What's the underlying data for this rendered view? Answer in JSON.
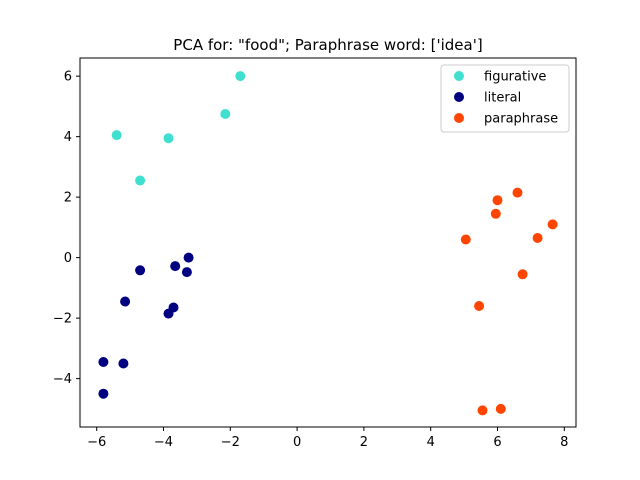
{
  "chart_data": {
    "type": "scatter",
    "title": "PCA for: \"food\"; Paraphrase word: ['idea']",
    "xlabel": "",
    "ylabel": "",
    "xlim": [
      -6.5,
      8.35
    ],
    "ylim": [
      -5.6,
      6.6
    ],
    "xticks": [
      -6,
      -4,
      -2,
      0,
      2,
      4,
      6,
      8
    ],
    "xtick_labels": [
      "−6",
      "−4",
      "−2",
      "0",
      "2",
      "4",
      "6",
      "8"
    ],
    "yticks": [
      -4,
      -2,
      0,
      2,
      4,
      6
    ],
    "ytick_labels": [
      "−4",
      "−2",
      "0",
      "2",
      "4",
      "6"
    ],
    "grid": false,
    "legend_position": "top-right",
    "series": [
      {
        "name": "figurative",
        "color": "#40e0d0",
        "points": [
          {
            "x": -5.4,
            "y": 4.05
          },
          {
            "x": -3.85,
            "y": 3.95
          },
          {
            "x": -4.7,
            "y": 2.55
          },
          {
            "x": -2.15,
            "y": 4.75
          },
          {
            "x": -1.7,
            "y": 6.0
          }
        ]
      },
      {
        "name": "literal",
        "color": "#000080",
        "points": [
          {
            "x": -3.25,
            "y": 0.0
          },
          {
            "x": -3.65,
            "y": -0.28
          },
          {
            "x": -3.3,
            "y": -0.48
          },
          {
            "x": -4.7,
            "y": -0.42
          },
          {
            "x": -5.15,
            "y": -1.45
          },
          {
            "x": -3.7,
            "y": -1.65
          },
          {
            "x": -3.85,
            "y": -1.85
          },
          {
            "x": -5.8,
            "y": -3.45
          },
          {
            "x": -5.2,
            "y": -3.5
          },
          {
            "x": -5.8,
            "y": -4.5
          }
        ]
      },
      {
        "name": "paraphrase",
        "color": "#ff4500",
        "points": [
          {
            "x": 6.6,
            "y": 2.15
          },
          {
            "x": 6.0,
            "y": 1.9
          },
          {
            "x": 5.95,
            "y": 1.45
          },
          {
            "x": 7.65,
            "y": 1.1
          },
          {
            "x": 7.2,
            "y": 0.65
          },
          {
            "x": 5.05,
            "y": 0.6
          },
          {
            "x": 6.75,
            "y": -0.55
          },
          {
            "x": 5.45,
            "y": -1.6
          },
          {
            "x": 6.1,
            "y": -5.0
          },
          {
            "x": 5.55,
            "y": -5.05
          }
        ]
      }
    ]
  }
}
